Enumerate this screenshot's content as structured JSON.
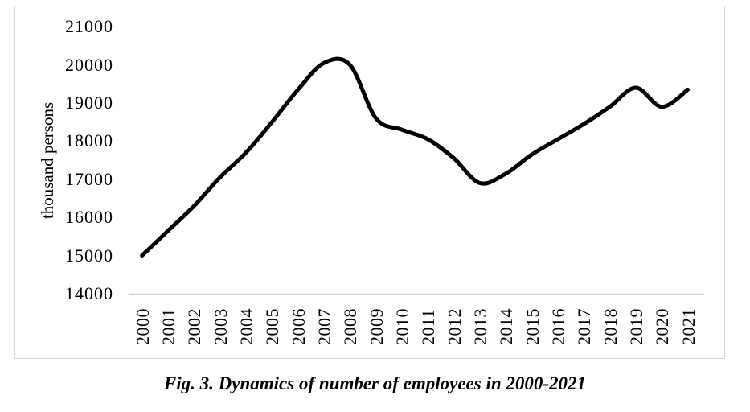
{
  "figure": {
    "caption": "Fig. 3. Dynamics of number of employees in 2000-2021"
  },
  "chart_data": {
    "type": "line",
    "title": "",
    "xlabel": "",
    "ylabel": "thousand persons",
    "categories": [
      "2000",
      "2001",
      "2002",
      "2003",
      "2004",
      "2005",
      "2006",
      "2007",
      "2008",
      "2009",
      "2010",
      "2011",
      "2012",
      "2013",
      "2014",
      "2015",
      "2016",
      "2017",
      "2018",
      "2019",
      "2020",
      "2021"
    ],
    "series": [
      {
        "values": [
          15000,
          15650,
          16300,
          17050,
          17700,
          18500,
          19350,
          20050,
          20000,
          18600,
          18300,
          18050,
          17550,
          16900,
          17150,
          17650,
          18050,
          18450,
          18900,
          19400,
          18900,
          19350
        ]
      }
    ],
    "ylim": [
      14000,
      21000
    ],
    "yticks": [
      21000,
      20000,
      19000,
      18000,
      17000,
      16000,
      15000,
      14000
    ],
    "ytick_step": 1000,
    "grid": false,
    "legend": "none",
    "line_style": "smooth",
    "line_color": "#000000",
    "line_width": 5,
    "axis_line_color": "#d0d0d0",
    "frame_border_color": "#d5d5d5",
    "text_color": "#000000"
  }
}
